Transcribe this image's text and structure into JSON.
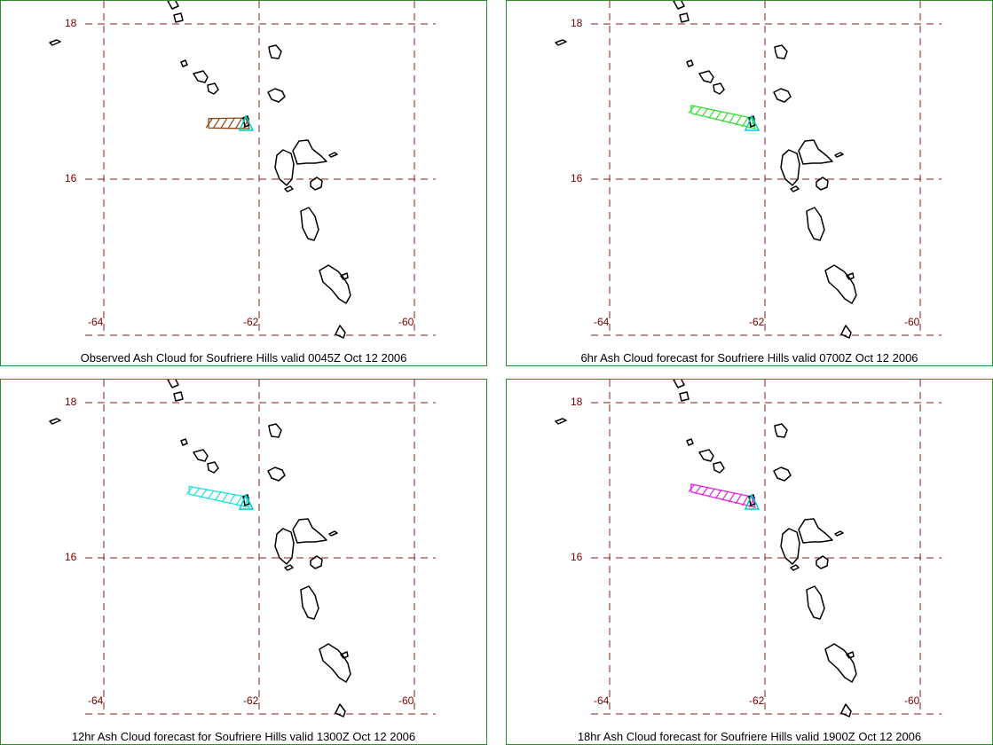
{
  "colors": {
    "grid": "#8b1a1a",
    "tick_text": "#7a0000",
    "border": "#2e8b2e",
    "coast": "#000000",
    "volcano": "#00cccc"
  },
  "panels": [
    {
      "caption": "Observed Ash Cloud for Soufriere  Hills valid 0045Z Oct 12 2006",
      "cloud_color": "#8b4513",
      "cloud_lon_west": -62.65,
      "cloud_lat_top": 16.78,
      "cloud_lat_bottom": 16.66,
      "lat_labels": [
        "18",
        "16"
      ],
      "lon_labels": [
        "-64",
        "-62",
        "-60"
      ]
    },
    {
      "caption": "6hr Ash Cloud forecast for Soufriere  Hills valid 0700Z Oct 12 2006",
      "cloud_color": "#33dd33",
      "cloud_lon_west": -62.95,
      "cloud_lat_top": 16.95,
      "cloud_lat_bottom": 16.85,
      "lat_labels": [
        "18",
        "16"
      ],
      "lon_labels": [
        "-64",
        "-62",
        "-60"
      ]
    },
    {
      "caption": "12hr Ash Cloud forecast for Soufriere  Hills valid 1300Z Oct 12 2006",
      "cloud_color": "#22e0e0",
      "cloud_lon_west": -62.9,
      "cloud_lat_top": 16.92,
      "cloud_lat_bottom": 16.82,
      "lat_labels": [
        "18",
        "16"
      ],
      "lon_labels": [
        "-64",
        "-62",
        "-60"
      ]
    },
    {
      "caption": "18hr Ash Cloud forecast for Soufriere  Hills valid 1900Z Oct 12 2006",
      "cloud_color": "#dd22dd",
      "cloud_lon_west": -62.95,
      "cloud_lat_top": 16.95,
      "cloud_lat_bottom": 16.85,
      "lat_labels": [
        "18",
        "16"
      ],
      "lon_labels": [
        "-64",
        "-62",
        "-60"
      ]
    }
  ]
}
